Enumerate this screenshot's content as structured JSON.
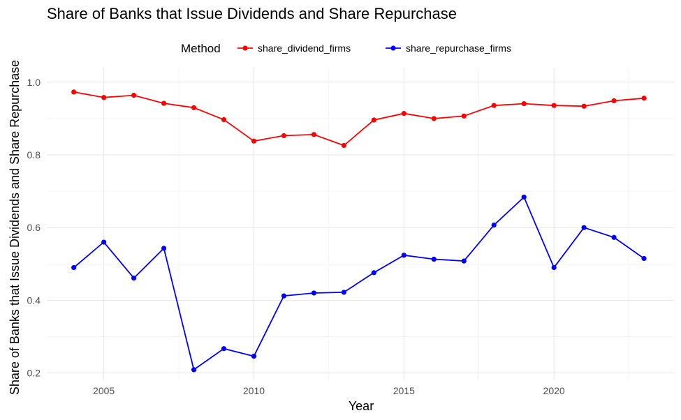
{
  "chart_data": {
    "type": "line",
    "title": "Share of Banks that Issue Dividends and Share Repurchase",
    "xlabel": "Year",
    "ylabel": "Share of Banks that Issue Dividends and Share Repurchase",
    "legend_title": "Method",
    "legend_position": "top",
    "grid": true,
    "x": [
      2004,
      2005,
      2006,
      2007,
      2008,
      2009,
      2010,
      2011,
      2012,
      2013,
      2014,
      2015,
      2016,
      2017,
      2018,
      2019,
      2020,
      2021,
      2022,
      2023
    ],
    "xlim": [
      2003.1,
      2024.0
    ],
    "ylim": [
      0.18,
      1.04
    ],
    "x_ticks": [
      2005,
      2010,
      2015,
      2020
    ],
    "y_ticks": [
      0.2,
      0.4,
      0.6,
      0.8,
      1.0
    ],
    "x_tick_labels": [
      "2005",
      "2010",
      "2015",
      "2020"
    ],
    "y_tick_labels": [
      "0.2",
      "0.4",
      "0.6",
      "0.8",
      "1.0"
    ],
    "series": [
      {
        "name": "share_dividend_firms",
        "color": "#ff0000",
        "values": [
          0.973,
          0.958,
          0.964,
          0.942,
          0.93,
          0.897,
          0.838,
          0.853,
          0.856,
          0.826,
          0.896,
          0.914,
          0.9,
          0.907,
          0.936,
          0.941,
          0.936,
          0.934,
          0.949,
          0.956
        ]
      },
      {
        "name": "share_repurchase_firms",
        "color": "#0000ff",
        "values": [
          0.49,
          0.56,
          0.461,
          0.543,
          0.209,
          0.267,
          0.246,
          0.412,
          0.42,
          0.422,
          0.476,
          0.524,
          0.513,
          0.508,
          0.607,
          0.684,
          0.49,
          0.6,
          0.573,
          0.515
        ]
      }
    ]
  }
}
